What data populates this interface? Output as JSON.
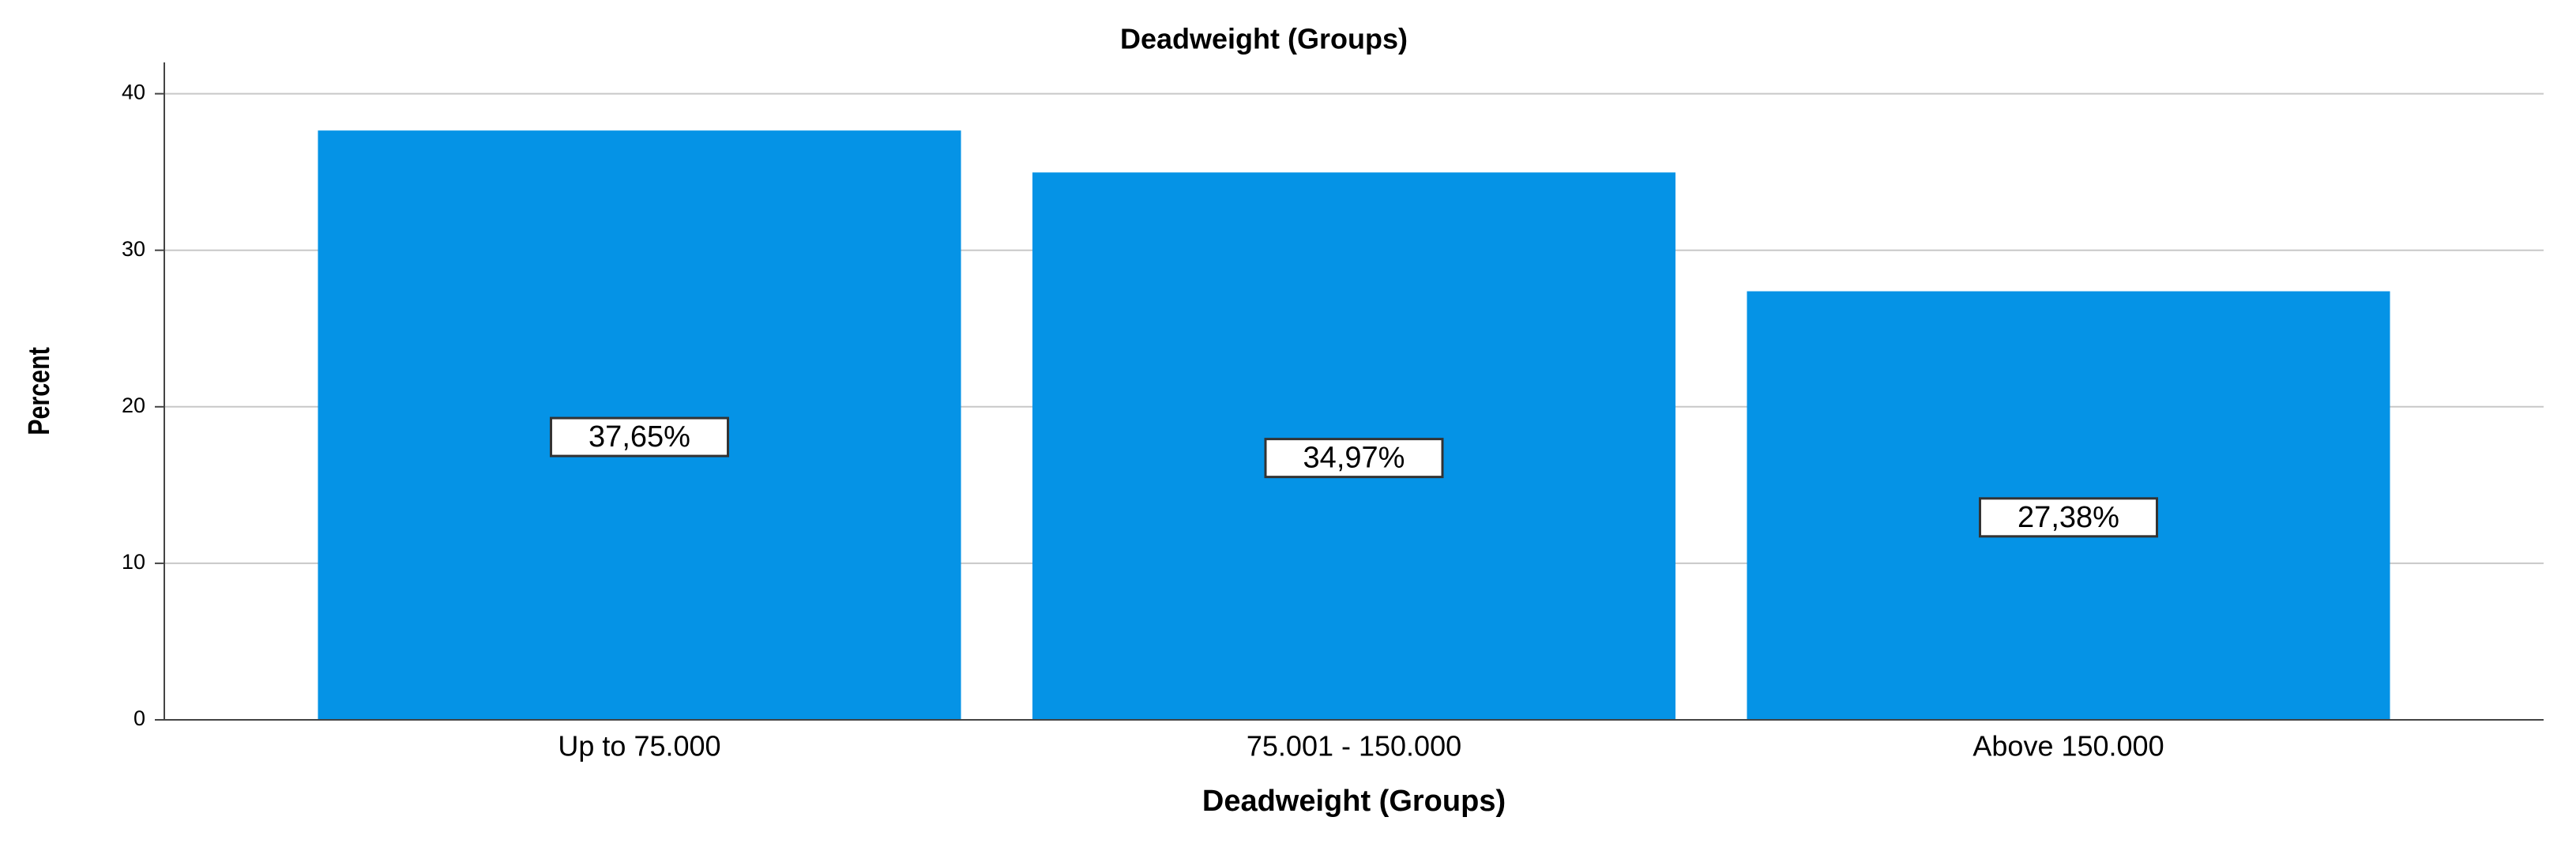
{
  "chart_data": {
    "type": "bar",
    "title": "Deadweight (Groups)",
    "x_label": "Deadweight (Groups)",
    "y_label": "Percent",
    "categories": [
      "Up to 75.000",
      "75.001 - 150.000",
      "Above 150.000"
    ],
    "values": [
      37.65,
      34.97,
      27.38
    ],
    "value_labels": [
      "37,65%",
      "34,97%",
      "27,38%"
    ],
    "color": "#0593e6",
    "ylim": [
      0,
      42
    ],
    "yticks": [
      0,
      10,
      20,
      30,
      40
    ],
    "grid": true
  }
}
